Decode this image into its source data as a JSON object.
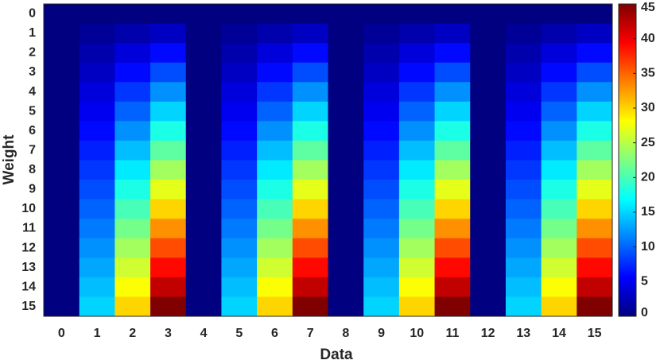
{
  "chart_data": {
    "type": "heatmap",
    "xlabel": "Data",
    "ylabel": "Weight",
    "x": [
      0,
      1,
      2,
      3,
      4,
      5,
      6,
      7,
      8,
      9,
      10,
      11,
      12,
      13,
      14,
      15
    ],
    "y": [
      0,
      1,
      2,
      3,
      4,
      5,
      6,
      7,
      8,
      9,
      10,
      11,
      12,
      13,
      14,
      15
    ],
    "z": [
      [
        0,
        0,
        0,
        0,
        0,
        0,
        0,
        0,
        0,
        0,
        0,
        0,
        0,
        0,
        0,
        0
      ],
      [
        0,
        1,
        2,
        3,
        0,
        1,
        2,
        3,
        0,
        1,
        2,
        3,
        0,
        1,
        2,
        3
      ],
      [
        0,
        2,
        4,
        6,
        0,
        2,
        4,
        6,
        0,
        2,
        4,
        6,
        0,
        2,
        4,
        6
      ],
      [
        0,
        3,
        6,
        9,
        0,
        3,
        6,
        9,
        0,
        3,
        6,
        9,
        0,
        3,
        6,
        9
      ],
      [
        0,
        4,
        8,
        12,
        0,
        4,
        8,
        12,
        0,
        4,
        8,
        12,
        0,
        4,
        8,
        12
      ],
      [
        0,
        5,
        10,
        15,
        0,
        5,
        10,
        15,
        0,
        5,
        10,
        15,
        0,
        5,
        10,
        15
      ],
      [
        0,
        6,
        12,
        18,
        0,
        6,
        12,
        18,
        0,
        6,
        12,
        18,
        0,
        6,
        12,
        18
      ],
      [
        0,
        7,
        14,
        21,
        0,
        7,
        14,
        21,
        0,
        7,
        14,
        21,
        0,
        7,
        14,
        21
      ],
      [
        0,
        8,
        16,
        24,
        0,
        8,
        16,
        24,
        0,
        8,
        16,
        24,
        0,
        8,
        16,
        24
      ],
      [
        0,
        9,
        18,
        27,
        0,
        9,
        18,
        27,
        0,
        9,
        18,
        27,
        0,
        9,
        18,
        27
      ],
      [
        0,
        10,
        20,
        30,
        0,
        10,
        20,
        30,
        0,
        10,
        20,
        30,
        0,
        10,
        20,
        30
      ],
      [
        0,
        11,
        22,
        33,
        0,
        11,
        22,
        33,
        0,
        11,
        22,
        33,
        0,
        11,
        22,
        33
      ],
      [
        0,
        12,
        24,
        36,
        0,
        12,
        24,
        36,
        0,
        12,
        24,
        36,
        0,
        12,
        24,
        36
      ],
      [
        0,
        13,
        26,
        39,
        0,
        13,
        26,
        39,
        0,
        13,
        26,
        39,
        0,
        13,
        26,
        39
      ],
      [
        0,
        14,
        28,
        42,
        0,
        14,
        28,
        42,
        0,
        14,
        28,
        42,
        0,
        14,
        28,
        42
      ],
      [
        0,
        15,
        30,
        45,
        0,
        15,
        30,
        45,
        0,
        15,
        30,
        45,
        0,
        15,
        30,
        45
      ]
    ],
    "colormap": "jet",
    "clim": [
      0,
      45
    ],
    "cticks": [
      0,
      5,
      10,
      15,
      20,
      25,
      30,
      35,
      40,
      45
    ]
  }
}
